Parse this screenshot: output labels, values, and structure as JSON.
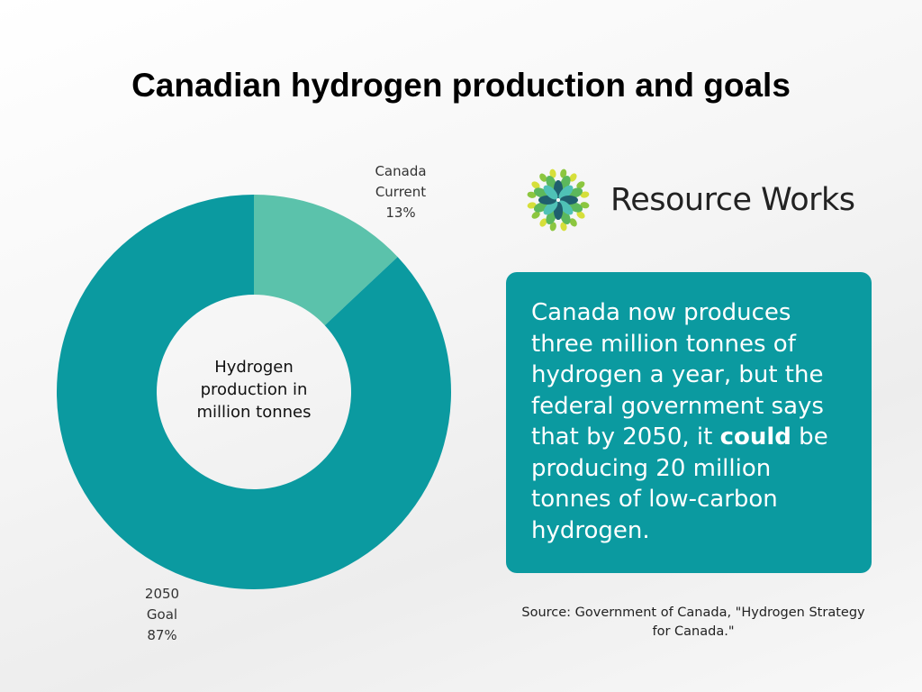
{
  "title": "Canadian hydrogen production and goals",
  "chart_data": {
    "type": "pie",
    "variant": "donut",
    "center_label": "Hydrogen production in million tonnes",
    "slices": [
      {
        "label": "Canada Current",
        "label_line1": "Canada",
        "label_line2": "Current",
        "value": 13,
        "value_label": "13%",
        "color": "#5bc2ab"
      },
      {
        "label": "2050 Goal",
        "label_line1": "2050",
        "label_line2": "Goal",
        "value": 87,
        "value_label": "87%",
        "color": "#0b9aa0"
      }
    ]
  },
  "logo": {
    "text": "Resource Works"
  },
  "callout": {
    "text_before": "Canada now produces three million tonnes of hydrogen a year, but the federal government says that by 2050, it ",
    "text_bold": "could",
    "text_after": " be producing 20 million tonnes of low-carbon hydrogen."
  },
  "source": "Source: Government of Canada, \"Hydrogen Strategy for Canada.\""
}
